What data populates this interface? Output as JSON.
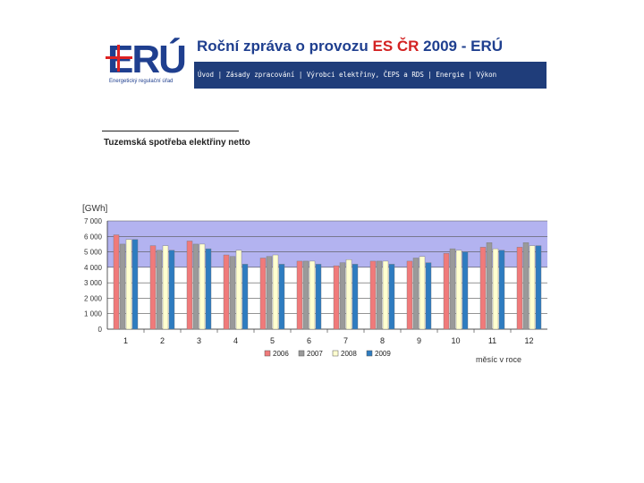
{
  "header": {
    "logo_text": "ERÚ",
    "logo_subtitle": "Energetický regulační úřad",
    "title_prefix": "Roční zpráva o provozu ",
    "title_highlight": "ES ČR",
    "title_suffix": " 2009 - ERÚ",
    "nav_text": "Úvod | Zásady zpracování | Výrobci elektřiny, ČEPS a RDS | Energie | Výkon"
  },
  "section": {
    "subtitle": "Tuzemská spotřeba elektřiny netto"
  },
  "chart_data": {
    "type": "bar",
    "title": "",
    "ylabel": "[GWh]",
    "xlabel": "měsíc v roce",
    "ylim": [
      0,
      7000
    ],
    "yticks": [
      "7 000",
      "6 000",
      "5 000",
      "4 000",
      "3 000",
      "2 000",
      "1 000",
      "0"
    ],
    "ytick_values": [
      7000,
      6000,
      5000,
      4000,
      3000,
      2000,
      1000,
      0
    ],
    "categories": [
      "1",
      "2",
      "3",
      "4",
      "5",
      "6",
      "7",
      "8",
      "9",
      "10",
      "11",
      "12"
    ],
    "series": [
      {
        "name": "2006",
        "color": "#f07a7a",
        "values": [
          6100,
          5400,
          5700,
          4800,
          4600,
          4400,
          4100,
          4400,
          4400,
          4900,
          5300,
          5300
        ]
      },
      {
        "name": "2007",
        "color": "#9a9a9a",
        "values": [
          5500,
          5100,
          5500,
          4700,
          4700,
          4400,
          4300,
          4400,
          4600,
          5200,
          5600,
          5600
        ]
      },
      {
        "name": "2008",
        "color": "#ffffd0",
        "values": [
          5800,
          5400,
          5500,
          5100,
          4800,
          4400,
          4500,
          4400,
          4700,
          5100,
          5200,
          5400
        ]
      },
      {
        "name": "2009",
        "color": "#2e7cc0",
        "values": [
          5800,
          5100,
          5200,
          4200,
          4200,
          4200,
          4200,
          4200,
          4300,
          5000,
          5100,
          5400
        ]
      }
    ],
    "plot_background": "#b3b3f0",
    "legend_position": "bottom",
    "grid": true
  }
}
